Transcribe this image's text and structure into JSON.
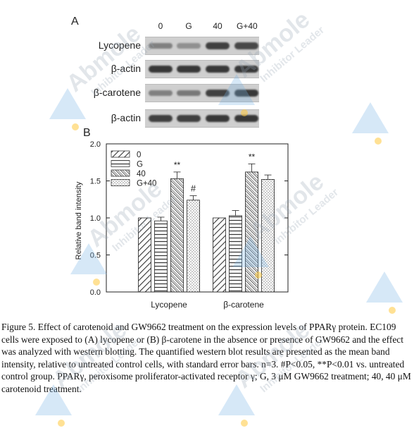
{
  "panel_a": {
    "letter": "A",
    "lanes": [
      "0",
      "G",
      "40",
      "G+40"
    ],
    "rows": [
      {
        "label": "Lycopene",
        "bands": [
          0.45,
          0.35,
          0.85,
          0.8
        ]
      },
      {
        "label": "β-actin",
        "bands": [
          0.9,
          0.9,
          0.9,
          0.9
        ]
      },
      {
        "label": "β-carotene",
        "bands": [
          0.45,
          0.5,
          0.85,
          0.9
        ]
      },
      {
        "label": "β-actin",
        "bands": [
          0.85,
          0.85,
          0.9,
          0.9
        ]
      }
    ]
  },
  "chart_data": {
    "type": "bar",
    "panel_letter": "B",
    "categories": [
      "Lycopene",
      "β-carotene"
    ],
    "series": [
      {
        "name": "0",
        "values": [
          1.0,
          1.0
        ],
        "errors": [
          0,
          0
        ],
        "annotations": [
          "",
          ""
        ]
      },
      {
        "name": "G",
        "values": [
          0.96,
          1.03
        ],
        "errors": [
          0.05,
          0.07
        ],
        "annotations": [
          "",
          ""
        ]
      },
      {
        "name": "40",
        "values": [
          1.53,
          1.62
        ],
        "errors": [
          0.09,
          0.11
        ],
        "annotations": [
          "**",
          "**"
        ]
      },
      {
        "name": "G+40",
        "values": [
          1.24,
          1.52
        ],
        "errors": [
          0.06,
          0.06
        ],
        "annotations": [
          "#",
          ""
        ]
      }
    ],
    "ylabel": "Relative band intensity",
    "ylim": [
      0.0,
      2.0
    ],
    "yticks": [
      "0.0",
      "0.5",
      "1.0",
      "1.5",
      "2.0"
    ],
    "legend_placement": "top-left"
  },
  "caption": "Figure 5. Effect of carotenoid and GW9662 treatment on the expression levels of PPARγ protein. EC109 cells were exposed to (A) lycopene or (B) β-carotene in the absence or presence of GW9662 and the effect was analyzed with western blotting. The quantified western blot results are presented as the mean band intensity, relative to untreated control cells, with standard error bars. n=3. #P<0.05, **P<0.01 vs. untreated control group. PPARγ, peroxisome proliferator-activated receptor γ; G, 3 μM GW9662 treatment; 40, 40 μM carotenoid treatment.",
  "watermark": {
    "brand": "Abmole",
    "tagline": "Inhibitor Leader"
  },
  "colors": {
    "blot_background": "#cfcfcf",
    "band_dark": "#3a3a3a",
    "watermark_blue": "#78b4e6",
    "watermark_dot": "#ffc83c"
  }
}
